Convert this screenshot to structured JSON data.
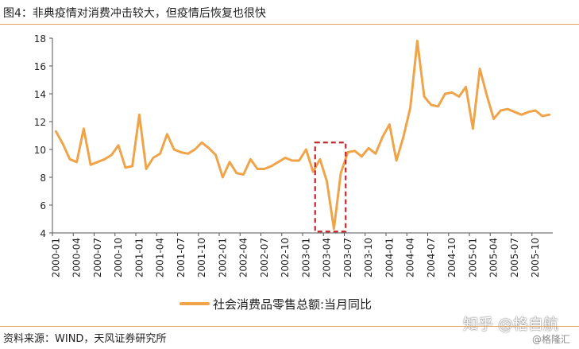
{
  "header": {
    "title": "图4：非典疫情对消费冲击较大，但疫情后恢复也很快"
  },
  "footer": {
    "source": "资料来源：WIND，天风证券研究所"
  },
  "watermark": {
    "main": "知乎 @格自航",
    "sub": "@格隆汇"
  },
  "colors": {
    "series": "#f0a44a",
    "accent_rule": "#e4a15a",
    "highlight_box": "#c0282d"
  },
  "chart_data": {
    "type": "line",
    "title": "",
    "xlabel": "",
    "ylabel": "",
    "ylim": [
      4,
      18
    ],
    "yticks": [
      4,
      6,
      8,
      10,
      12,
      14,
      16,
      18
    ],
    "grid": false,
    "legend_position": "bottom",
    "x": [
      "2000-01",
      "2000-02",
      "2000-03",
      "2000-04",
      "2000-05",
      "2000-06",
      "2000-07",
      "2000-08",
      "2000-09",
      "2000-10",
      "2000-11",
      "2000-12",
      "2001-01",
      "2001-02",
      "2001-03",
      "2001-04",
      "2001-05",
      "2001-06",
      "2001-07",
      "2001-08",
      "2001-09",
      "2001-10",
      "2001-11",
      "2001-12",
      "2002-01",
      "2002-02",
      "2002-03",
      "2002-04",
      "2002-05",
      "2002-06",
      "2002-07",
      "2002-08",
      "2002-09",
      "2002-10",
      "2002-11",
      "2002-12",
      "2003-01",
      "2003-02",
      "2003-03",
      "2003-04",
      "2003-05",
      "2003-06",
      "2003-07",
      "2003-08",
      "2003-09",
      "2003-10",
      "2003-11",
      "2003-12",
      "2004-01",
      "2004-02",
      "2004-03",
      "2004-04",
      "2004-05",
      "2004-06",
      "2004-07",
      "2004-08",
      "2004-09",
      "2004-10",
      "2004-11",
      "2004-12",
      "2005-01",
      "2005-02",
      "2005-03",
      "2005-04",
      "2005-05",
      "2005-06",
      "2005-07",
      "2005-08",
      "2005-09",
      "2005-10",
      "2005-11",
      "2005-12"
    ],
    "xtick_labels": [
      "2000-01",
      "2000-04",
      "2000-07",
      "2000-10",
      "2001-01",
      "2001-04",
      "2001-07",
      "2001-10",
      "2002-01",
      "2002-04",
      "2002-07",
      "2002-10",
      "2003-01",
      "2003-04",
      "2003-07",
      "2003-10",
      "2004-01",
      "2004-04",
      "2004-07",
      "2004-10",
      "2005-01",
      "2005-04",
      "2005-07",
      "2005-10"
    ],
    "series": [
      {
        "name": "社会消费品零售总额:当月同比",
        "values": [
          11.3,
          10.4,
          9.3,
          9.1,
          11.5,
          8.9,
          9.1,
          9.3,
          9.6,
          10.3,
          8.7,
          8.8,
          12.5,
          8.6,
          9.4,
          9.7,
          11.1,
          10.0,
          9.8,
          9.7,
          10.0,
          10.5,
          10.1,
          9.6,
          8.0,
          9.1,
          8.3,
          8.2,
          9.3,
          8.6,
          8.6,
          8.8,
          9.1,
          9.4,
          9.2,
          9.2,
          10.0,
          8.4,
          9.3,
          7.7,
          4.3,
          8.3,
          9.8,
          9.9,
          9.5,
          10.1,
          9.7,
          10.9,
          11.8,
          9.2,
          10.9,
          13.0,
          17.8,
          13.8,
          13.2,
          13.1,
          14.0,
          14.1,
          13.8,
          14.5,
          11.5,
          15.8,
          13.9,
          12.2,
          12.8,
          12.9,
          12.7,
          12.5,
          12.7,
          12.8,
          12.4,
          12.5
        ]
      }
    ],
    "highlight": {
      "from": "2003-03",
      "to": "2003-06",
      "y_from": 4.1,
      "y_to": 10.5
    }
  }
}
